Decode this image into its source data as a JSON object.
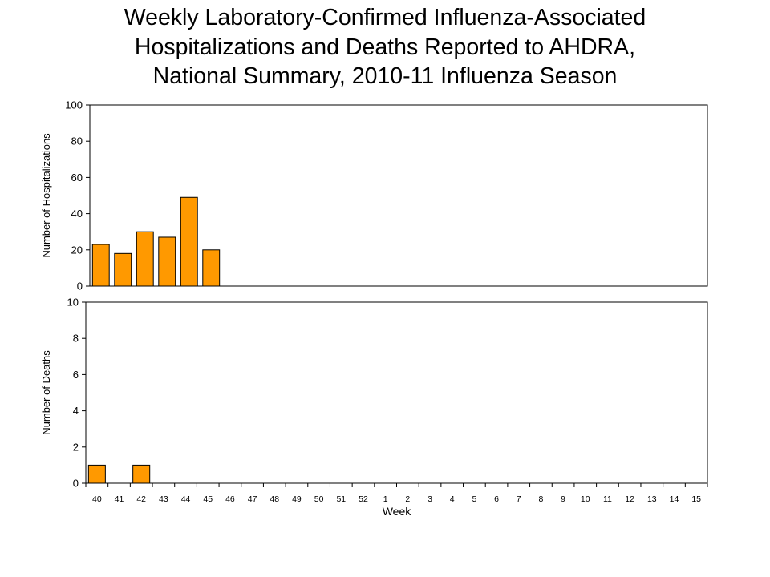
{
  "title_lines": [
    "Weekly Laboratory-Confirmed Influenza-Associated",
    "Hospitalizations and Deaths Reported to AHDRA,",
    "National Summary, 2010-11 Influenza Season"
  ],
  "colors": {
    "bar_fill": "#FF9900",
    "bar_stroke": "#000000"
  },
  "chart_data": [
    {
      "type": "bar",
      "title": "",
      "ylabel": "Number of Hospitalizations",
      "xlabel": "",
      "ylim": [
        0,
        100
      ],
      "yticks": [
        0,
        20,
        40,
        60,
        80,
        100
      ],
      "categories": [
        "40",
        "41",
        "42",
        "43",
        "44",
        "45",
        "46",
        "47",
        "48",
        "49",
        "50",
        "51",
        "52",
        "1",
        "2",
        "3",
        "4",
        "5",
        "6",
        "7",
        "8",
        "9",
        "10",
        "11",
        "12",
        "13",
        "14",
        "15"
      ],
      "values": [
        23,
        18,
        30,
        27,
        49,
        20,
        null,
        null,
        null,
        null,
        null,
        null,
        null,
        null,
        null,
        null,
        null,
        null,
        null,
        null,
        null,
        null,
        null,
        null,
        null,
        null,
        null,
        null
      ],
      "grid": false,
      "show_xticks": false
    },
    {
      "type": "bar",
      "title": "",
      "ylabel": "Number of Deaths",
      "xlabel": "Week",
      "ylim": [
        0,
        10
      ],
      "yticks": [
        0,
        2,
        4,
        6,
        8,
        10
      ],
      "categories": [
        "40",
        "41",
        "42",
        "43",
        "44",
        "45",
        "46",
        "47",
        "48",
        "49",
        "50",
        "51",
        "52",
        "1",
        "2",
        "3",
        "4",
        "5",
        "6",
        "7",
        "8",
        "9",
        "10",
        "11",
        "12",
        "13",
        "14",
        "15"
      ],
      "values": [
        1,
        0,
        1,
        0,
        0,
        0,
        null,
        null,
        null,
        null,
        null,
        null,
        null,
        null,
        null,
        null,
        null,
        null,
        null,
        null,
        null,
        null,
        null,
        null,
        null,
        null,
        null,
        null
      ],
      "grid": false,
      "show_xticks": true
    }
  ]
}
